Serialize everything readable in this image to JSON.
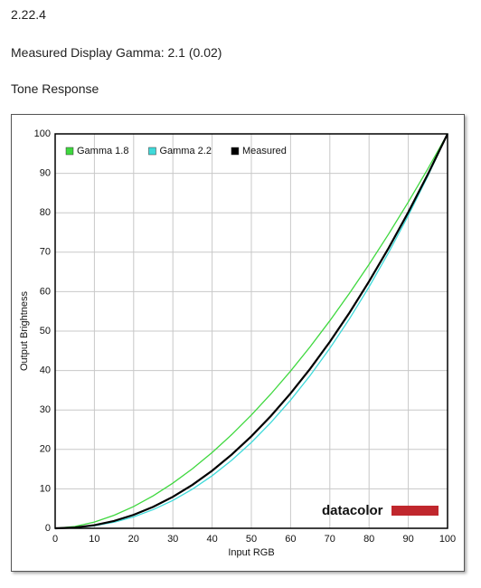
{
  "page": {
    "version": "2.22.4",
    "gamma_text": "Measured Display Gamma: 2.1 (0.02)",
    "section": "Tone Response"
  },
  "chart_data": {
    "type": "line",
    "xlabel": "Input RGB",
    "ylabel": "Output Brightness",
    "logo": "datacolor",
    "x": [
      0,
      5,
      10,
      15,
      20,
      25,
      30,
      35,
      40,
      45,
      50,
      55,
      60,
      65,
      70,
      75,
      80,
      85,
      90,
      95,
      100
    ],
    "series": [
      {
        "name": "Gamma 1.8",
        "color": "#3fd83f",
        "values": [
          0,
          0.46,
          1.58,
          3.29,
          5.52,
          8.25,
          11.45,
          15.11,
          19.22,
          23.76,
          28.72,
          34.09,
          39.87,
          46.05,
          52.62,
          59.58,
          66.92,
          74.64,
          82.73,
          91.18,
          100
        ]
      },
      {
        "name": "Gamma 2.2",
        "color": "#3fdada",
        "values": [
          0,
          0.14,
          0.63,
          1.54,
          2.9,
          4.74,
          7.07,
          9.93,
          13.32,
          17.26,
          21.76,
          26.84,
          32.5,
          38.76,
          45.63,
          53.11,
          61.21,
          69.94,
          79.31,
          89.33,
          100
        ]
      },
      {
        "name": "Measured",
        "color": "#000000",
        "values": [
          0,
          0.19,
          0.79,
          1.86,
          3.41,
          5.44,
          7.98,
          11.03,
          14.6,
          18.7,
          23.33,
          28.5,
          34.21,
          40.47,
          47.28,
          54.65,
          62.59,
          71.08,
          80.15,
          89.79,
          100
        ]
      }
    ],
    "xlim": [
      0,
      100
    ],
    "ylim": [
      0,
      100
    ],
    "xticks": [
      0,
      10,
      20,
      30,
      40,
      50,
      60,
      70,
      80,
      90,
      100
    ],
    "yticks": [
      0,
      10,
      20,
      30,
      40,
      50,
      60,
      70,
      80,
      90,
      100
    ],
    "grid": true,
    "legend": "top-left"
  }
}
